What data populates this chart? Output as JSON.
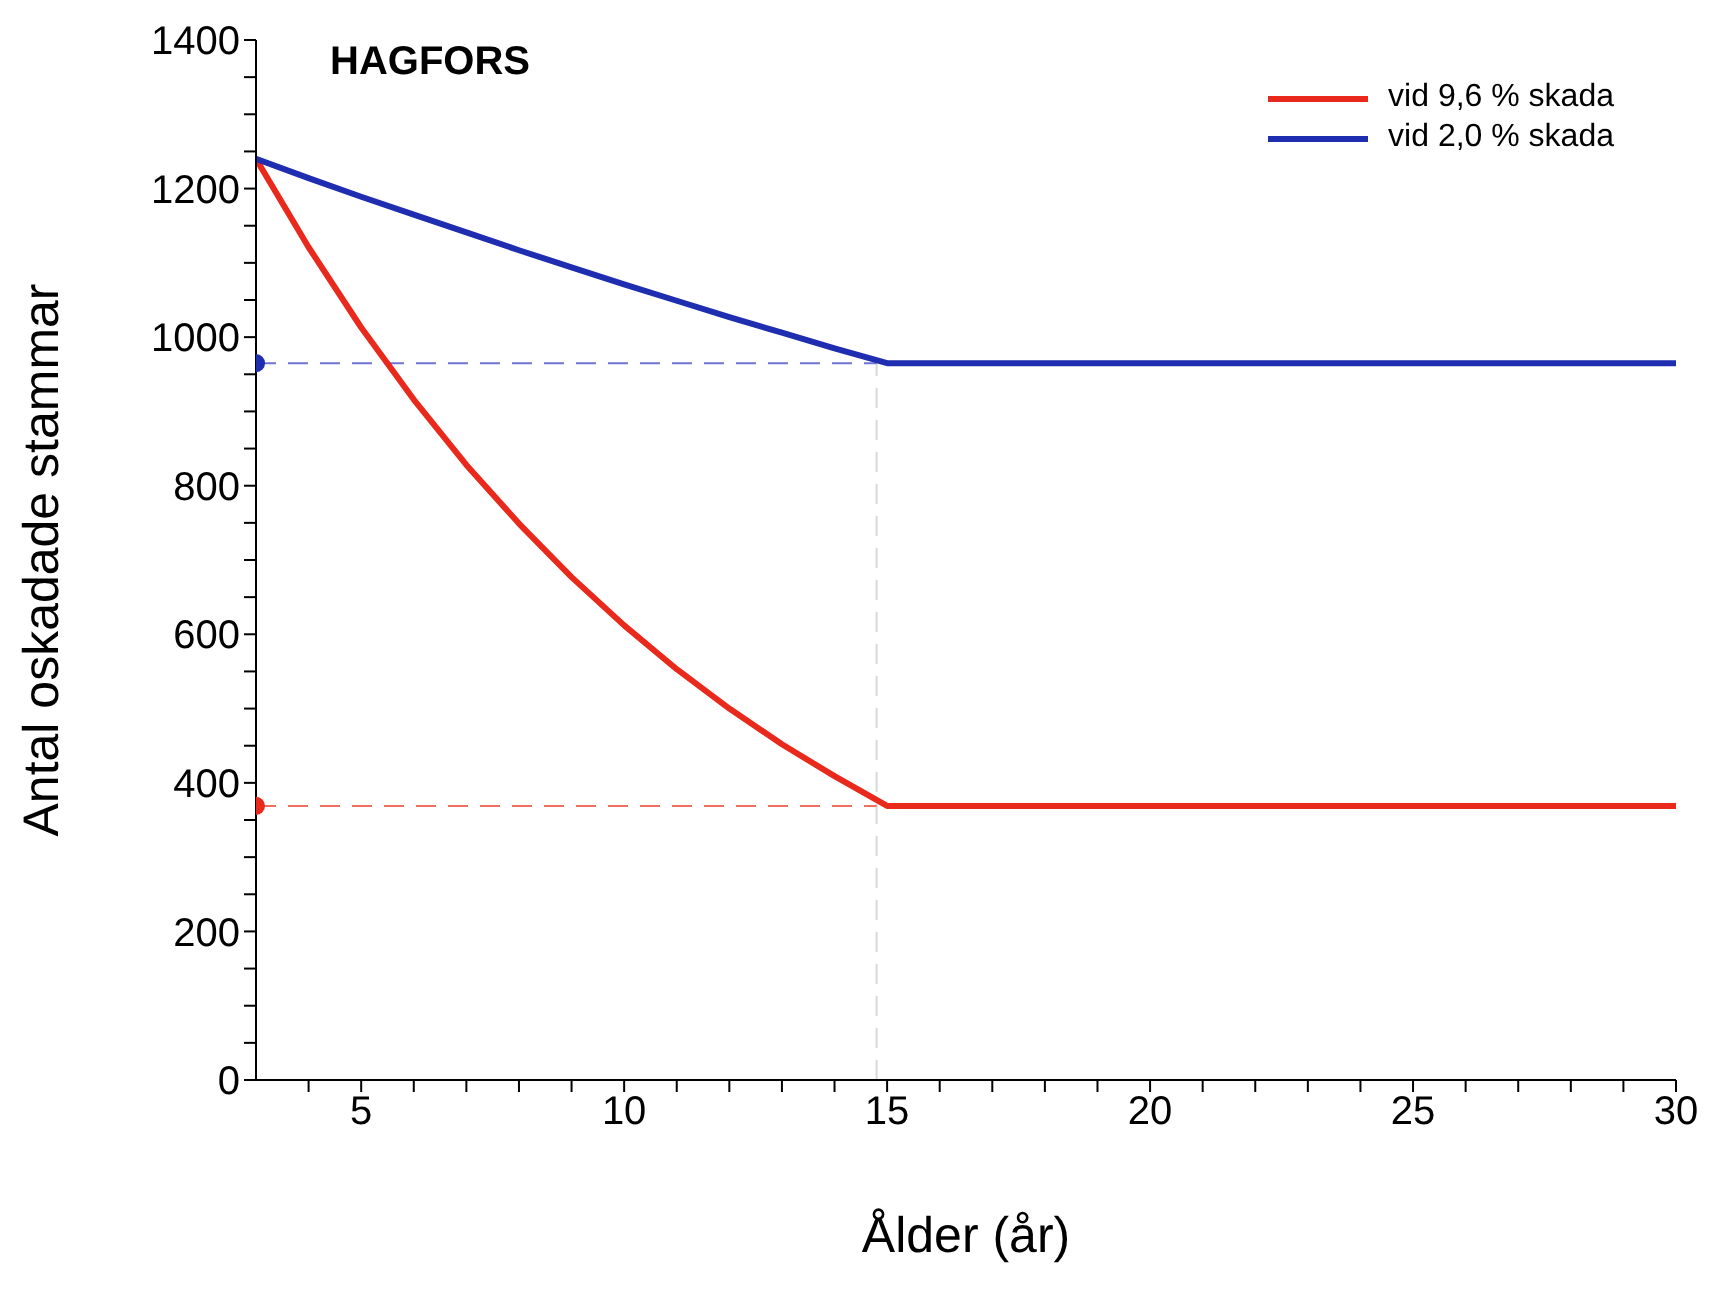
{
  "chart_data": {
    "type": "line",
    "title": "HAGFORS",
    "xlabel": "Ålder (år)",
    "ylabel": "Antal oskadade stammar",
    "xlim": [
      3,
      30
    ],
    "ylim": [
      0,
      1400
    ],
    "xticks": [
      {
        "value": 4,
        "label": null
      },
      5,
      {
        "value": 6,
        "label": null
      },
      {
        "value": 7,
        "label": null
      },
      {
        "value": 8,
        "label": null
      },
      {
        "value": 9,
        "label": null
      },
      10,
      {
        "value": 11,
        "label": null
      },
      {
        "value": 12,
        "label": null
      },
      {
        "value": 13,
        "label": null
      },
      {
        "value": 14,
        "label": null
      },
      15,
      {
        "value": 16,
        "label": null
      },
      {
        "value": 17,
        "label": null
      },
      {
        "value": 18,
        "label": null
      },
      {
        "value": 19,
        "label": null
      },
      20,
      {
        "value": 21,
        "label": null
      },
      {
        "value": 22,
        "label": null
      },
      {
        "value": 23,
        "label": null
      },
      {
        "value": 24,
        "label": null
      },
      25,
      {
        "value": 26,
        "label": null
      },
      {
        "value": 27,
        "label": null
      },
      {
        "value": 28,
        "label": null
      },
      {
        "value": 29,
        "label": null
      },
      30
    ],
    "yticks": [
      0,
      {
        "value": 50,
        "label": null
      },
      {
        "value": 100,
        "label": null
      },
      {
        "value": 150,
        "label": null
      },
      200,
      {
        "value": 250,
        "label": null
      },
      {
        "value": 300,
        "label": null
      },
      {
        "value": 350,
        "label": null
      },
      400,
      {
        "value": 450,
        "label": null
      },
      {
        "value": 500,
        "label": null
      },
      {
        "value": 550,
        "label": null
      },
      600,
      {
        "value": 650,
        "label": null
      },
      {
        "value": 700,
        "label": null
      },
      {
        "value": 750,
        "label": null
      },
      800,
      {
        "value": 850,
        "label": null
      },
      {
        "value": 900,
        "label": null
      },
      {
        "value": 950,
        "label": null
      },
      1000,
      {
        "value": 1050,
        "label": null
      },
      {
        "value": 1100,
        "label": null
      },
      {
        "value": 1150,
        "label": null
      },
      1200,
      {
        "value": 1250,
        "label": null
      },
      {
        "value": 1300,
        "label": null
      },
      {
        "value": 1350,
        "label": null
      },
      1400
    ],
    "grid": false,
    "legend": "top right",
    "line_style": "solid",
    "series": [
      {
        "color": "#d8d8d8",
        "line_style": "dashed",
        "x": [
          14.8,
          14.8
        ],
        "values": [
          0,
          965
        ]
      },
      {
        "color": "#6f72d8",
        "line_style": "dashed",
        "x": [
          3,
          14.8
        ],
        "values": [
          965,
          965
        ]
      },
      {
        "color": "#f07060",
        "line_style": "dashed",
        "x": [
          3,
          14.8
        ],
        "values": [
          369,
          369
        ]
      },
      {
        "name": "vid 9,6 % skada",
        "color": "#e8291c",
        "x": [
          3,
          4,
          5,
          6,
          7,
          8,
          9,
          10,
          11,
          12,
          13,
          14,
          15,
          30
        ],
        "values": [
          1240,
          1121,
          1013,
          916,
          828,
          749,
          677,
          612,
          553,
          500,
          452,
          409,
          369,
          369
        ]
      },
      {
        "name": "vid 2,0 % skada",
        "color": "#1f2db0",
        "x": [
          3,
          4,
          5,
          6,
          7,
          8,
          9,
          10,
          11,
          12,
          13,
          14,
          15,
          30
        ],
        "values": [
          1240,
          1214,
          1189,
          1165,
          1141,
          1117,
          1094,
          1071,
          1049,
          1027,
          1006,
          985,
          965,
          965
        ]
      },
      {
        "type": "scatter",
        "marker": "circle",
        "color": "#1f2db0",
        "x": [
          3
        ],
        "values": [
          965
        ]
      },
      {
        "type": "scatter",
        "marker": "circle",
        "color": "#e8291c",
        "x": [
          3
        ],
        "values": [
          369
        ]
      }
    ]
  }
}
